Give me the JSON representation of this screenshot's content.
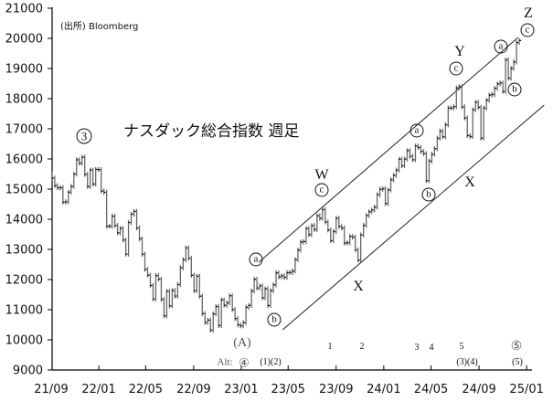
{
  "chart_data": {
    "type": "bar",
    "subtype": "weekly price bars",
    "title": "ナスダック総合指数 週足",
    "source": "(出所) Bloomberg",
    "xlabel": "",
    "ylabel": "",
    "ylim": [
      9000,
      21000
    ],
    "yticks": [
      "21000",
      "20000",
      "19000",
      "18000",
      "17000",
      "16000",
      "15000",
      "14000",
      "13000",
      "12000",
      "11000",
      "10000",
      "9000"
    ],
    "xticks": [
      "21/09",
      "22/01",
      "22/05",
      "22/09",
      "23/01",
      "23/05",
      "23/09",
      "24/01",
      "24/05",
      "24/09",
      "25/01"
    ],
    "grid": false,
    "series_start": "2021-09-03",
    "frequency": "weekly",
    "close": [
      15363,
      15115,
      15043,
      15047,
      14566,
      14579,
      14897,
      15090,
      15498,
      15971,
      15860,
      16057,
      15491,
      15085,
      15630,
      15169,
      15653,
      15645,
      14936,
      14893,
      13768,
      13770,
      14098,
      13791,
      13548,
      13694,
      13313,
      12843,
      13893,
      14169,
      14261,
      13711,
      13351,
      12839,
      12335,
      12145,
      11805,
      11354,
      12131,
      12013,
      11340,
      10798,
      11608,
      11128,
      11635,
      11452,
      11834,
      12391,
      12657,
      13047,
      12705,
      12141,
      11631,
      12112,
      11448,
      10868,
      10576,
      10652,
      10321,
      10860,
      11102,
      10475,
      11323,
      11146,
      11226,
      11462,
      11005,
      10705,
      10498,
      10466,
      10569,
      11079,
      11140,
      11622,
      12007,
      11718,
      11787,
      11395,
      11689,
      11139,
      11630,
      11824,
      12222,
      12088,
      12123,
      12072,
      12227,
      12235,
      12284,
      12658,
      12976,
      13241,
      13259,
      13689,
      13492,
      13788,
      13660,
      14113,
      14032,
      14317,
      13909,
      13644,
      13290,
      13590,
      14031,
      13761,
      13708,
      13212,
      13219,
      13431,
      13407,
      12984,
      12643,
      13478,
      13798,
      14125,
      14251,
      14305,
      14404,
      14814,
      14993,
      15011,
      14524,
      14973,
      15311,
      15455,
      15629,
      15990,
      15776,
      15997,
      16275,
      16085,
      15973,
      16429,
      16379,
      16249,
      16175,
      15282,
      15928,
      16156,
      16341,
      16686,
      16921,
      16735,
      17133,
      17689,
      17689,
      17733,
      18353,
      18398,
      17727,
      17358,
      16776,
      16745,
      17631,
      17877,
      17714,
      16691,
      17684,
      17948,
      18119,
      18138,
      18343,
      18490,
      18519,
      18240,
      19287,
      18680,
      19004,
      19218,
      19860,
      19927
    ],
    "channel_lines": [
      {
        "from": [
          "2023-02-15",
          12576
        ],
        "to": [
          "2024-12-10",
          20030
        ]
      },
      {
        "from": [
          "2023-04-17",
          10333
        ],
        "to": [
          "2025-02-15",
          17788
        ]
      }
    ],
    "wave_labels": {
      "w3": "3",
      "W": "W",
      "Wc": "c",
      "a1": "a",
      "b1": "b",
      "X1": "X",
      "a2": "a",
      "b2": "b",
      "Y": "Y",
      "Yc": "c",
      "X2": "X",
      "a3": "a",
      "b3": "b",
      "Z": "Z",
      "Zc": "c",
      "A": "(A)",
      "n1": "1",
      "n2": "2",
      "n3": "3",
      "n4": "4",
      "n5": "5",
      "n5c": "⑤",
      "alt": "Alt:",
      "alt4": "④",
      "alt12": "(1)(2)",
      "alt34": "(3)(4)",
      "alt5": "(5)"
    }
  }
}
